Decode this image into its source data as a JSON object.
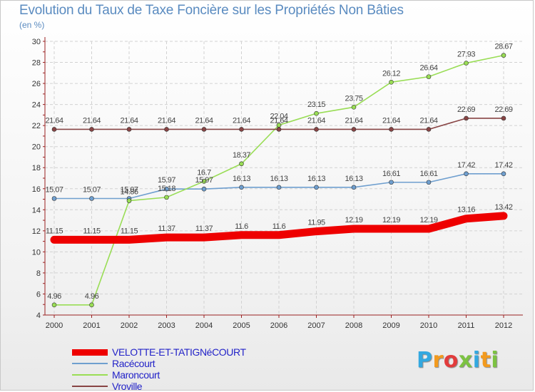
{
  "chart_data": {
    "type": "line",
    "title": "Evolution du Taux de Taxe Foncière sur les Propriétés Non Bâties",
    "ylabel": "(en %)",
    "xlabel": "",
    "categories": [
      "2000",
      "2001",
      "2002",
      "2003",
      "2004",
      "2005",
      "2006",
      "2007",
      "2008",
      "2009",
      "2010",
      "2011",
      "2012"
    ],
    "ylim": [
      4,
      30
    ],
    "yticks": [
      4,
      6,
      8,
      10,
      12,
      14,
      16,
      18,
      20,
      22,
      24,
      26,
      28,
      30
    ],
    "grid": true,
    "legend_position": "bottom-left",
    "series": [
      {
        "name": "VELOTTE-ET-TATIGNéCOURT",
        "color": "#ee0000",
        "emphasis": true,
        "values": [
          11.15,
          11.15,
          11.15,
          11.37,
          11.37,
          11.6,
          11.6,
          11.95,
          12.19,
          12.19,
          12.19,
          13.16,
          13.42
        ],
        "labels": [
          "11.15",
          "11.15",
          "11.15",
          "11.37",
          "11.37",
          "11.6",
          "11.6",
          "11.95",
          "12.19",
          "12.19",
          "12.19",
          "13.16",
          "13.42"
        ]
      },
      {
        "name": "Racécourt",
        "color": "#6f9fcf",
        "values": [
          15.07,
          15.07,
          15.07,
          15.97,
          15.97,
          16.13,
          16.13,
          16.13,
          16.13,
          16.61,
          16.61,
          17.42,
          17.42
        ],
        "labels": [
          "15.07",
          "15.07",
          "15.07",
          "15.97",
          "15.97",
          "16.13",
          "16.13",
          "16.13",
          "16.13",
          "16.61",
          "16.61",
          "17.42",
          "17.42"
        ]
      },
      {
        "name": "Maroncourt",
        "color": "#99dd55",
        "values": [
          4.96,
          4.96,
          14.86,
          15.18,
          16.7,
          18.37,
          22.04,
          23.15,
          23.75,
          26.12,
          26.64,
          27.93,
          28.67
        ],
        "labels": [
          "4.96",
          "4.96",
          "14.86",
          "15.18",
          "16.7",
          "18.37",
          "22.04",
          "23.15",
          "23.75",
          "26.12",
          "26.64",
          "27.93",
          "28.67"
        ]
      },
      {
        "name": "Vroville",
        "color": "#884444",
        "values": [
          21.64,
          21.64,
          21.64,
          21.64,
          21.64,
          21.64,
          21.64,
          21.64,
          21.64,
          21.64,
          21.64,
          22.69,
          22.69
        ],
        "labels": [
          "21.64",
          "21.64",
          "21.64",
          "21.64",
          "21.64",
          "21.64",
          "21.64",
          "21.64",
          "21.64",
          "21.64",
          "21.64",
          "22.69",
          "22.69"
        ]
      }
    ]
  },
  "brand": {
    "letters": [
      "P",
      "r",
      "o",
      "x",
      "i",
      "t",
      "i"
    ],
    "colors": [
      "#33a8e0",
      "#f29a1e",
      "#e23c3c",
      "#7cc242",
      "#33a8e0",
      "#f29a1e",
      "#7cc242"
    ]
  }
}
